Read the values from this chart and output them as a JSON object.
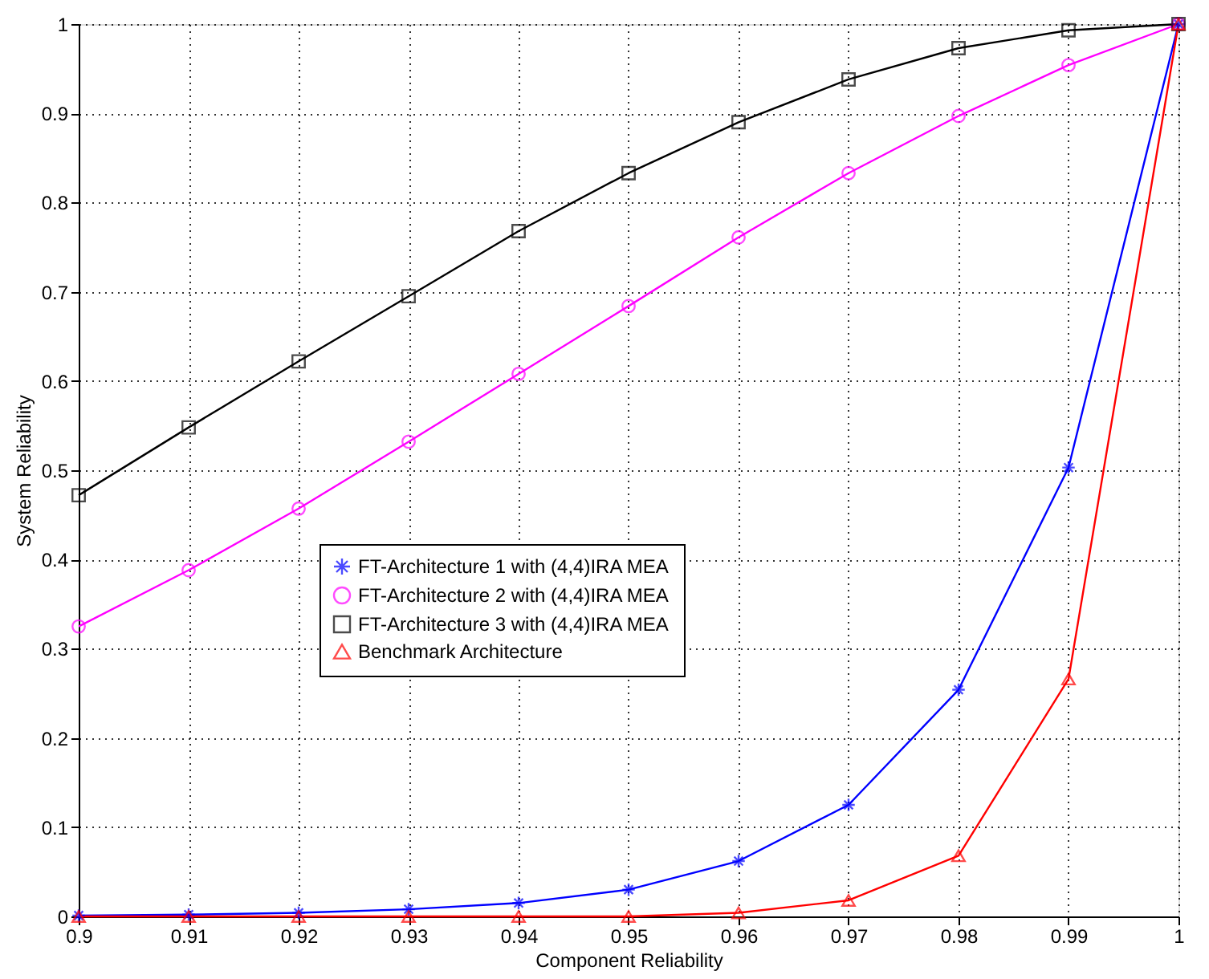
{
  "chart_data": {
    "type": "line",
    "xlabel": "Component Reliability",
    "ylabel": "System Reliability",
    "x": [
      0.9,
      0.91,
      0.92,
      0.93,
      0.94,
      0.95,
      0.96,
      0.97,
      0.98,
      0.99,
      1.0
    ],
    "series": [
      {
        "name": "FT-Architecture 1 with (4,4)IRA MEA",
        "color": "#0000ff",
        "marker": "cross",
        "values": [
          0.001,
          0.002,
          0.004,
          0.008,
          0.015,
          0.03,
          0.062,
          0.125,
          0.254,
          0.503,
          1.0
        ]
      },
      {
        "name": "FT-Architecture 2 with (4,4)IRA MEA",
        "color": "#ff00ff",
        "marker": "circle",
        "values": [
          0.325,
          0.388,
          0.457,
          0.532,
          0.608,
          0.684,
          0.761,
          0.833,
          0.897,
          0.954,
          1.0
        ]
      },
      {
        "name": "FT-Architecture 3 with (4,4)IRA MEA",
        "color": "#000000",
        "marker": "square",
        "values": [
          0.472,
          0.548,
          0.622,
          0.695,
          0.768,
          0.833,
          0.89,
          0.938,
          0.973,
          0.993,
          1.0
        ]
      },
      {
        "name": "Benchmark Architecture",
        "color": "#ff0000",
        "marker": "triangle",
        "values": [
          0.0,
          0.0,
          0.0,
          0.0,
          0.0,
          0.0,
          0.004,
          0.018,
          0.068,
          0.266,
          1.0
        ]
      }
    ],
    "xlim": [
      0.9,
      1.0
    ],
    "xticks": [
      0.9,
      0.91,
      0.92,
      0.93,
      0.94,
      0.95,
      0.96,
      0.97,
      0.98,
      0.99,
      1
    ],
    "ylim": [
      0,
      1
    ],
    "yticks": [
      0,
      0.1,
      0.2,
      0.3,
      0.4,
      0.5,
      0.6,
      0.7,
      0.8,
      0.9,
      1
    ],
    "grid": true,
    "legend": "bottom left",
    "line_style": "solid"
  }
}
